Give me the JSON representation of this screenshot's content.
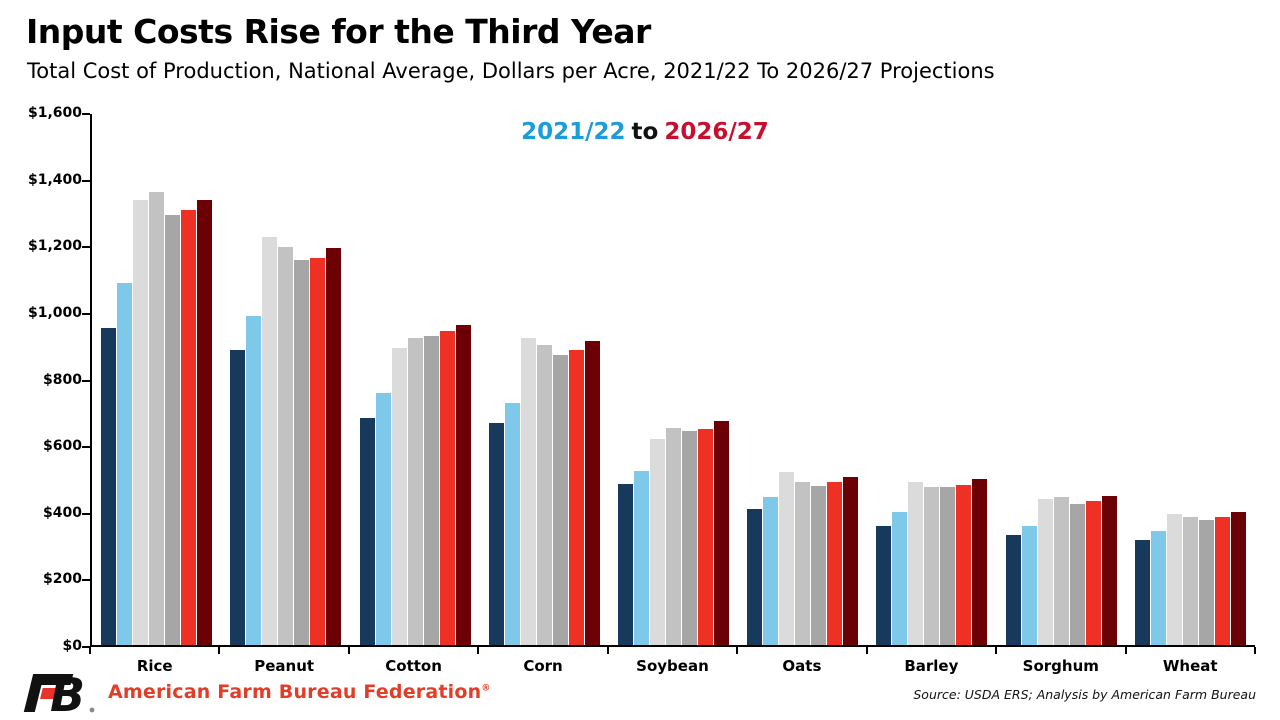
{
  "header": {
    "title": "Input Costs Rise for the Third Year",
    "subtitle": "Total Cost of Production, National Average, Dollars per Acre, 2021/22 To 2026/27 Projections"
  },
  "legend": {
    "start_label": "2021/22",
    "connector": "to",
    "end_label": "2026/27",
    "start_color": "#1B9DD9",
    "end_color": "#C8102E"
  },
  "chart_data": {
    "type": "bar",
    "title": "Input Costs Rise for the Third Year",
    "subtitle": "Total Cost of Production, National Average, Dollars per Acre, 2021/22 To 2026/27 Projections",
    "unit": "dollars per acre",
    "categories": [
      "Rice",
      "Peanut",
      "Cotton",
      "Corn",
      "Soybean",
      "Oats",
      "Barley",
      "Sorghum",
      "Wheat"
    ],
    "series": [
      {
        "name": "year-1-dark-navy",
        "color": "#17395C",
        "values": [
          955,
          890,
          685,
          670,
          485,
          410,
          360,
          330,
          315
        ]
      },
      {
        "name": "year-2-light-blue",
        "color": "#7EC8EA",
        "values": [
          1090,
          990,
          760,
          730,
          525,
          445,
          400,
          360,
          345
        ]
      },
      {
        "name": "year-3-light-gray",
        "color": "#DBDBDB",
        "values": [
          1340,
          1230,
          895,
          925,
          620,
          520,
          490,
          440,
          395
        ]
      },
      {
        "name": "year-4-medium-gray",
        "color": "#C2C2C2",
        "values": [
          1365,
          1200,
          925,
          905,
          655,
          490,
          475,
          445,
          387
        ]
      },
      {
        "name": "year-5-dark-gray",
        "color": "#A6A6A6",
        "values": [
          1295,
          1160,
          930,
          875,
          645,
          480,
          477,
          425,
          378
        ]
      },
      {
        "name": "year-6-red",
        "color": "#EE3124",
        "values": [
          1310,
          1165,
          945,
          890,
          650,
          490,
          483,
          435,
          385
        ]
      },
      {
        "name": "year-7-dark-red",
        "color": "#6B0005",
        "values": [
          1340,
          1195,
          965,
          915,
          675,
          505,
          500,
          450,
          400
        ]
      }
    ],
    "ylim": [
      0,
      1600
    ],
    "ytick_step": 200,
    "ytick_labels": [
      "$0",
      "$200",
      "$400",
      "$600",
      "$800",
      "$1,000",
      "$1,200",
      "$1,400",
      "$1,600"
    ],
    "grid": false,
    "legend_position": "top-center"
  },
  "footer": {
    "brand": "American Farm Bureau Federation",
    "registered": "®",
    "source": "Source: USDA ERS; Analysis by American Farm Bureau"
  }
}
